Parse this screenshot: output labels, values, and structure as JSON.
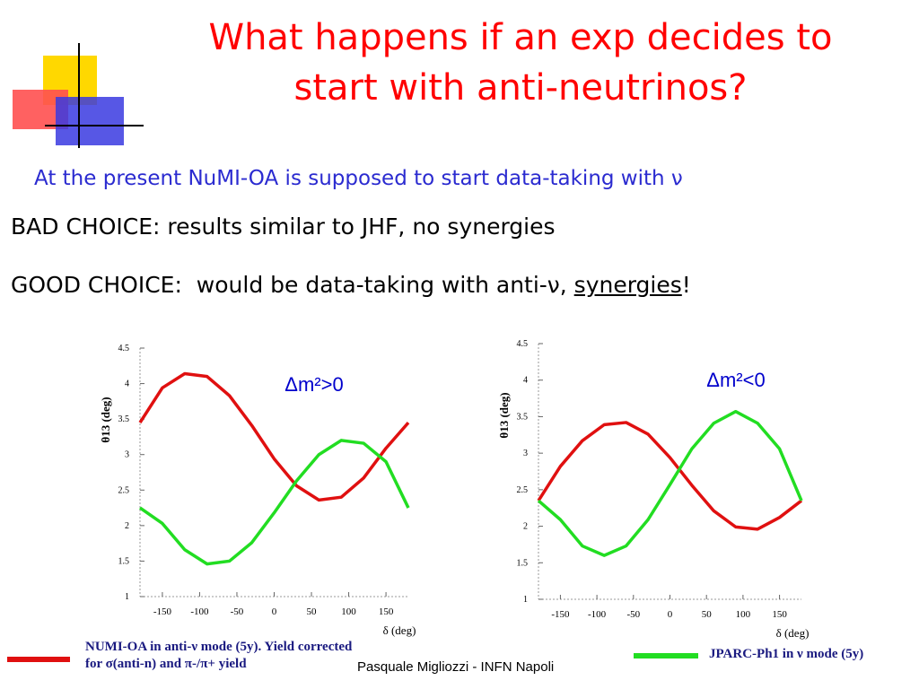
{
  "title_lines": [
    "What happens if an exp decides to",
    "start with anti-neutrinos?"
  ],
  "subtitle": "At the present NuMI-OA is supposed to start data-taking with ν",
  "bullets": [
    [
      "BAD CHOICE: results similar to JHF, no synergies"
    ],
    [
      "GOOD CHOICE:  would be data-taking with anti-ν, ",
      "synergies",
      "!"
    ]
  ],
  "footer": "Pasquale Migliozzi - INFN Napoli",
  "chart_data": [
    {
      "type": "line",
      "ylabel": "θ13 (deg)",
      "xlabel": "δ (deg)",
      "annotation": "Δm²>0",
      "x": [
        -180,
        -150,
        -120,
        -90,
        -60,
        -30,
        0,
        30,
        60,
        90,
        120,
        150,
        180
      ],
      "series": [
        {
          "name": "NUMI-OA in anti-ν mode (5y). Yield corrected for σ(anti-n) and π-/π+ yield",
          "color": "#e01010",
          "values": [
            3.45,
            3.94,
            4.14,
            4.1,
            3.83,
            3.41,
            2.94,
            2.56,
            2.36,
            2.4,
            2.67,
            3.09,
            3.45
          ]
        },
        {
          "name": "JPARC-Ph1 in ν mode (5y)",
          "color": "#22dd22",
          "values": [
            2.25,
            2.03,
            1.66,
            1.46,
            1.5,
            1.76,
            2.18,
            2.63,
            3.0,
            3.2,
            3.16,
            2.9,
            2.25
          ]
        }
      ],
      "xlim": [
        -180,
        180
      ],
      "xticks": [
        -150,
        -100,
        -50,
        0,
        50,
        100,
        150
      ],
      "ylim": [
        1,
        4.5
      ],
      "yticks": [
        1,
        1.5,
        2,
        2.5,
        3,
        3.5,
        4,
        4.5
      ]
    },
    {
      "type": "line",
      "ylabel": "θ13 (deg)",
      "xlabel": "δ (deg)",
      "annotation": "Δm²<0",
      "x": [
        -180,
        -150,
        -120,
        -90,
        -60,
        -30,
        0,
        30,
        60,
        90,
        120,
        150,
        180
      ],
      "series": [
        {
          "color": "#e01010",
          "values": [
            2.35,
            2.82,
            3.17,
            3.39,
            3.42,
            3.26,
            2.94,
            2.56,
            2.21,
            1.99,
            1.96,
            2.12,
            2.35
          ]
        },
        {
          "color": "#22dd22",
          "values": [
            2.35,
            2.09,
            1.73,
            1.6,
            1.73,
            2.09,
            2.57,
            3.06,
            3.41,
            3.57,
            3.41,
            3.06,
            2.35
          ]
        }
      ],
      "xlim": [
        -180,
        180
      ],
      "xticks": [
        -150,
        -100,
        -50,
        0,
        50,
        100,
        150
      ],
      "ylim": [
        1,
        4.5
      ],
      "yticks": [
        1,
        1.5,
        2,
        2.5,
        3,
        3.5,
        4,
        4.5
      ]
    }
  ]
}
